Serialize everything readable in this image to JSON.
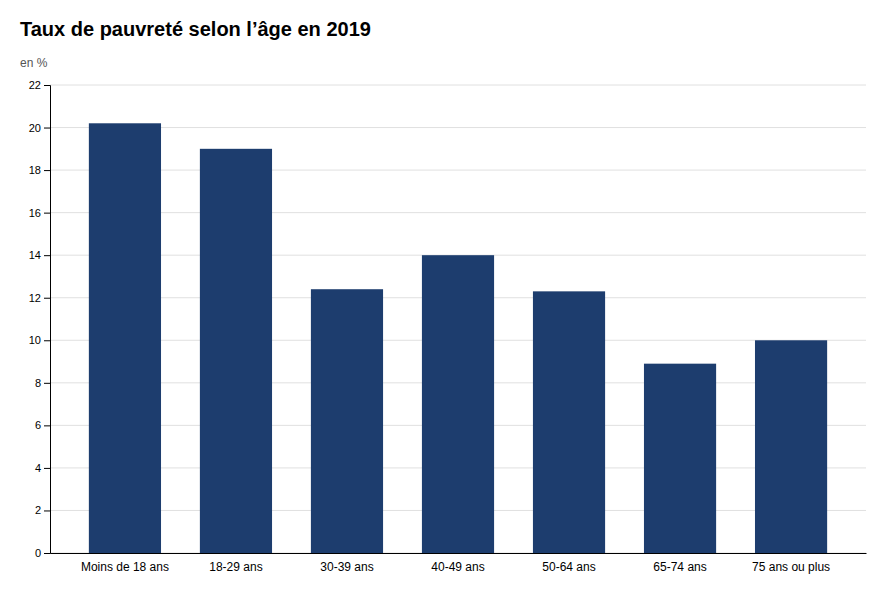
{
  "chart_data": {
    "type": "bar",
    "title": "Taux de pauvreté selon l’âge en 2019",
    "ylabel": "en %",
    "categories": [
      "Moins de 18 ans",
      "18-29 ans",
      "30-39 ans",
      "40-49 ans",
      "50-64 ans",
      "65-74 ans",
      "75 ans ou plus"
    ],
    "values": [
      20.2,
      19.0,
      12.4,
      14.0,
      12.3,
      8.9,
      10.0
    ],
    "color": "#1d3d6e",
    "ylim": [
      0,
      22
    ],
    "yticks": [
      0,
      2,
      4,
      6,
      8,
      10,
      12,
      14,
      16,
      18,
      20,
      22
    ],
    "grid": true
  }
}
